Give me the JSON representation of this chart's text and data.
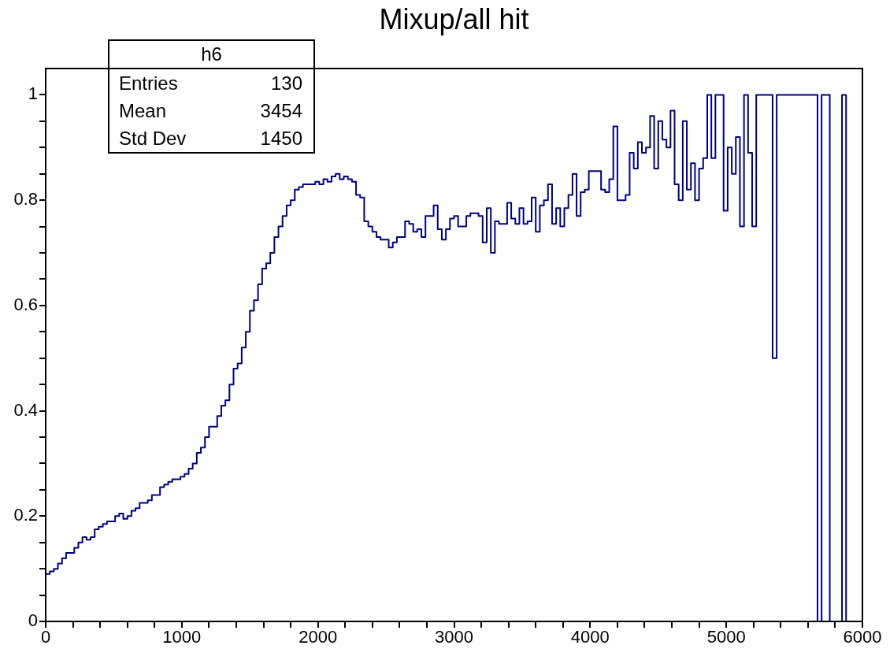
{
  "chart_data": {
    "type": "histogram",
    "title": "Mixup/all hit",
    "color": "#000080",
    "bins": [
      0,
      30,
      60,
      90,
      120,
      150,
      180,
      210,
      240,
      270,
      300,
      330,
      360,
      390,
      420,
      450,
      480,
      510,
      540,
      570,
      600,
      630,
      660,
      690,
      720,
      750,
      780,
      810,
      840,
      870,
      900,
      930,
      960,
      990,
      1020,
      1050,
      1080,
      1110,
      1140,
      1170,
      1200,
      1230,
      1260,
      1290,
      1320,
      1350,
      1380,
      1410,
      1440,
      1470,
      1500,
      1530,
      1560,
      1590,
      1620,
      1650,
      1680,
      1710,
      1740,
      1770,
      1800,
      1830,
      1860,
      1890,
      1920,
      1950,
      1980,
      2010,
      2040,
      2070,
      2100,
      2130,
      2160,
      2190,
      2220,
      2250,
      2280,
      2310,
      2340,
      2370,
      2400,
      2430,
      2460,
      2490,
      2520,
      2550,
      2580,
      2610,
      2640,
      2670,
      2700,
      2730,
      2760,
      2790,
      2820,
      2850,
      2880,
      2910,
      2940,
      2970,
      3000,
      3030,
      3060,
      3090,
      3120,
      3150,
      3180,
      3210,
      3240,
      3270,
      3300,
      3330,
      3360,
      3390,
      3420,
      3450,
      3480,
      3510,
      3540,
      3570,
      3600,
      3630,
      3660,
      3690,
      3720,
      3750,
      3780,
      3810,
      3840,
      3870,
      3900,
      3930,
      3960,
      3990,
      4020,
      4050,
      4080,
      4110,
      4140,
      4170,
      4200,
      4230,
      4260,
      4290,
      4320,
      4350,
      4380,
      4410,
      4440,
      4470,
      4500,
      4530,
      4560,
      4590,
      4620,
      4650,
      4680,
      4710,
      4740,
      4770,
      4800,
      4830,
      4860,
      4890,
      4920,
      4950,
      4980,
      5010,
      5040,
      5070,
      5100,
      5130,
      5160,
      5190,
      5220,
      5250,
      5280,
      5310,
      5340,
      5370,
      5400,
      5430,
      5460,
      5490,
      5520,
      5550,
      5580,
      5610,
      5640,
      5670,
      5700,
      5730,
      5760,
      5790,
      5820,
      5850,
      5880,
      5910,
      5940,
      5970,
      6000
    ],
    "values": [
      0.09,
      0.095,
      0.1,
      0.11,
      0.12,
      0.13,
      0.13,
      0.14,
      0.15,
      0.16,
      0.155,
      0.16,
      0.175,
      0.18,
      0.185,
      0.19,
      0.19,
      0.2,
      0.205,
      0.195,
      0.2,
      0.21,
      0.215,
      0.225,
      0.225,
      0.23,
      0.24,
      0.24,
      0.255,
      0.26,
      0.265,
      0.27,
      0.27,
      0.275,
      0.28,
      0.29,
      0.3,
      0.32,
      0.33,
      0.35,
      0.37,
      0.37,
      0.39,
      0.41,
      0.42,
      0.45,
      0.48,
      0.49,
      0.52,
      0.55,
      0.59,
      0.61,
      0.64,
      0.67,
      0.68,
      0.7,
      0.73,
      0.75,
      0.77,
      0.79,
      0.8,
      0.82,
      0.825,
      0.83,
      0.83,
      0.83,
      0.835,
      0.83,
      0.84,
      0.835,
      0.845,
      0.85,
      0.84,
      0.845,
      0.84,
      0.835,
      0.81,
      0.805,
      0.76,
      0.75,
      0.74,
      0.73,
      0.725,
      0.725,
      0.71,
      0.72,
      0.73,
      0.73,
      0.76,
      0.755,
      0.74,
      0.745,
      0.73,
      0.77,
      0.77,
      0.79,
      0.745,
      0.725,
      0.745,
      0.765,
      0.77,
      0.75,
      0.75,
      0.77,
      0.775,
      0.775,
      0.77,
      0.72,
      0.785,
      0.7,
      0.76,
      0.755,
      0.755,
      0.795,
      0.765,
      0.755,
      0.785,
      0.755,
      0.76,
      0.805,
      0.74,
      0.79,
      0.8,
      0.83,
      0.755,
      0.785,
      0.75,
      0.785,
      0.81,
      0.85,
      0.77,
      0.815,
      0.82,
      0.855,
      0.855,
      0.855,
      0.82,
      0.815,
      0.84,
      0.94,
      0.8,
      0.8,
      0.81,
      0.89,
      0.86,
      0.91,
      0.89,
      0.9,
      0.96,
      0.86,
      0.95,
      0.915,
      0.9,
      0.97,
      0.83,
      0.8,
      0.95,
      0.82,
      0.87,
      0.8,
      0.86,
      0.88,
      1,
      0.88,
      1,
      1,
      0.78,
      0.9,
      0.85,
      0.92,
      0.75,
      1,
      0.89,
      0.75,
      1,
      1,
      1,
      1,
      0.5,
      1,
      1,
      1,
      1,
      1,
      1,
      1,
      1,
      1,
      1,
      0,
      1,
      1,
      0,
      0,
      0,
      1,
      0,
      0,
      0,
      0
    ],
    "xlim": [
      0,
      6000
    ],
    "xticks": [
      0,
      {
        "value": 200,
        "label": null
      },
      {
        "value": 400,
        "label": null
      },
      {
        "value": 600,
        "label": null
      },
      {
        "value": 800,
        "label": null
      },
      1000,
      {
        "value": 1200,
        "label": null
      },
      {
        "value": 1400,
        "label": null
      },
      {
        "value": 1600,
        "label": null
      },
      {
        "value": 1800,
        "label": null
      },
      2000,
      {
        "value": 2200,
        "label": null
      },
      {
        "value": 2400,
        "label": null
      },
      {
        "value": 2600,
        "label": null
      },
      {
        "value": 2800,
        "label": null
      },
      3000,
      {
        "value": 3200,
        "label": null
      },
      {
        "value": 3400,
        "label": null
      },
      {
        "value": 3600,
        "label": null
      },
      {
        "value": 3800,
        "label": null
      },
      4000,
      {
        "value": 4200,
        "label": null
      },
      {
        "value": 4400,
        "label": null
      },
      {
        "value": 4600,
        "label": null
      },
      {
        "value": 4800,
        "label": null
      },
      5000,
      {
        "value": 5200,
        "label": null
      },
      {
        "value": 5400,
        "label": null
      },
      {
        "value": 5600,
        "label": null
      },
      {
        "value": 5800,
        "label": null
      },
      6000
    ],
    "ylim": [
      0,
      1.05
    ],
    "yticks": [
      0,
      {
        "value": 0.05,
        "label": null
      },
      {
        "value": 0.1,
        "label": null
      },
      {
        "value": 0.15,
        "label": null
      },
      0.2,
      {
        "value": 0.25,
        "label": null
      },
      {
        "value": 0.3,
        "label": null
      },
      {
        "value": 0.35,
        "label": null
      },
      0.4,
      {
        "value": 0.45,
        "label": null
      },
      {
        "value": 0.5,
        "label": null
      },
      {
        "value": 0.55,
        "label": null
      },
      0.6,
      {
        "value": 0.65,
        "label": null
      },
      {
        "value": 0.7,
        "label": null
      },
      {
        "value": 0.75,
        "label": null
      },
      0.8,
      {
        "value": 0.85,
        "label": null
      },
      {
        "value": 0.9,
        "label": null
      },
      {
        "value": 0.95,
        "label": null
      },
      1
    ],
    "grid": false,
    "legend": false,
    "annotations": [
      "h6",
      "Entries",
      "130",
      "Mean",
      "3454",
      "Std Dev",
      "1450"
    ]
  }
}
